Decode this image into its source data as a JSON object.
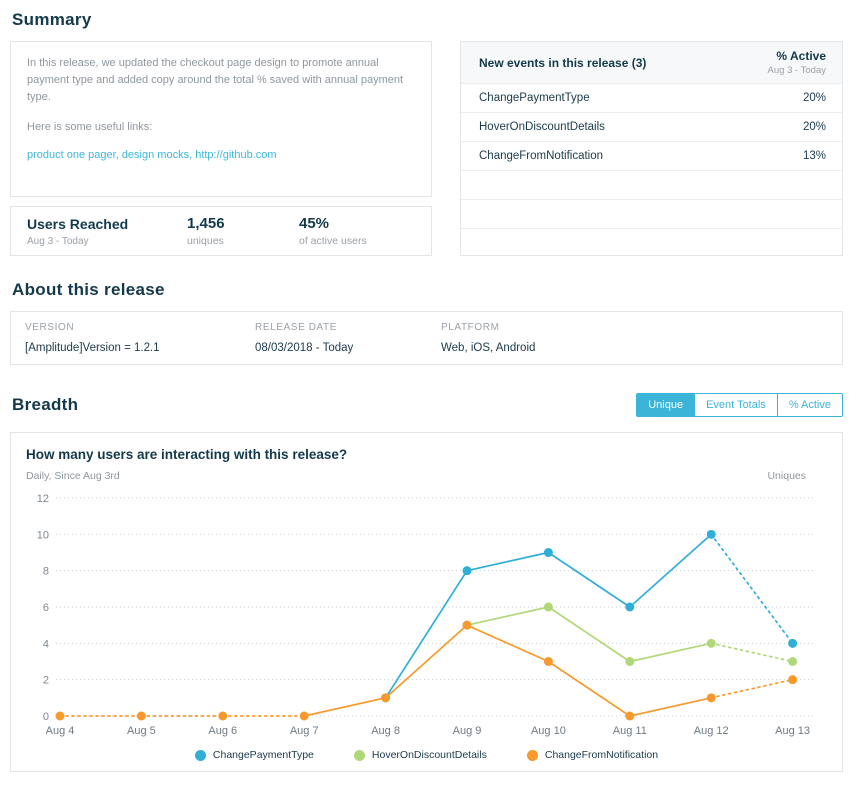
{
  "summary": {
    "heading": "Summary",
    "paragraph1": "In this release, we updated the checkout page design to promote annual payment type and added copy around the total % saved with annual payment type.",
    "paragraph2": "Here is some useful links:",
    "links": [
      {
        "label": "product one pager"
      },
      {
        "label": "design mocks"
      },
      {
        "label": "http://github.com"
      }
    ],
    "link_separator": ", "
  },
  "users_reached": {
    "title": "Users Reached",
    "date_range": "Aug 3 - Today",
    "uniques_value": "1,456",
    "uniques_label": "uniques",
    "percent_value": "45%",
    "percent_label": "of active users"
  },
  "events_table": {
    "title": "New events in this release (3)",
    "column_header": "% Active",
    "column_subheader": "Aug 3 - Today",
    "rows": [
      {
        "name": "ChangePaymentType",
        "value": "20%"
      },
      {
        "name": "HoverOnDiscountDetails",
        "value": "20%"
      },
      {
        "name": "ChangeFromNotification",
        "value": "13%"
      }
    ],
    "empty_row_count": 3
  },
  "about": {
    "heading": "About this release",
    "fields": [
      {
        "label": "VERSION",
        "value": "[Amplitude]Version = 1.2.1"
      },
      {
        "label": "RELEASE DATE",
        "value": "08/03/2018 - Today"
      },
      {
        "label": "PLATFORM",
        "value": "Web, iOS, Android"
      }
    ]
  },
  "breadth": {
    "heading": "Breadth",
    "tabs": [
      {
        "label": "Unique",
        "active": true
      },
      {
        "label": "Event Totals",
        "active": false
      },
      {
        "label": "% Active",
        "active": false
      }
    ],
    "chart_title": "How many users are interacting with this release?",
    "chart_subtitle": "Daily, Since Aug 3rd",
    "chart_unit": "Uniques"
  },
  "chart_data": {
    "type": "line",
    "title": "How many users are interacting with this release?",
    "subtitle": "Daily, Since Aug 3rd",
    "ylabel": "Uniques",
    "xlabel": "",
    "categories": [
      "Aug 4",
      "Aug 5",
      "Aug 6",
      "Aug 7",
      "Aug 8",
      "Aug 9",
      "Aug 10",
      "Aug 11",
      "Aug 12",
      "Aug 13"
    ],
    "ylim": [
      0,
      12
    ],
    "yticks": [
      0,
      2,
      4,
      6,
      8,
      10,
      12
    ],
    "grid": true,
    "legend_position": "bottom",
    "series": [
      {
        "name": "ChangePaymentType",
        "color": "#2fafd8",
        "values": [
          null,
          null,
          null,
          null,
          1,
          8,
          9,
          6,
          10,
          4
        ],
        "dotted_segments": [
          8
        ]
      },
      {
        "name": "HoverOnDiscountDetails",
        "color": "#b0d878",
        "values": [
          null,
          null,
          null,
          null,
          null,
          5,
          6,
          3,
          4,
          3
        ],
        "dotted_segments": [
          8
        ]
      },
      {
        "name": "ChangeFromNotification",
        "color": "#f8992e",
        "values": [
          0,
          0,
          0,
          0,
          1,
          5,
          3,
          0,
          1,
          2
        ],
        "dotted_segments": [
          0,
          1,
          2,
          8
        ]
      }
    ]
  },
  "colors": {
    "accent_cyan": "#3cb4d8",
    "navy_text": "#13394b",
    "gray_text": "#8f979e",
    "gridline": "#c8cdd2"
  }
}
